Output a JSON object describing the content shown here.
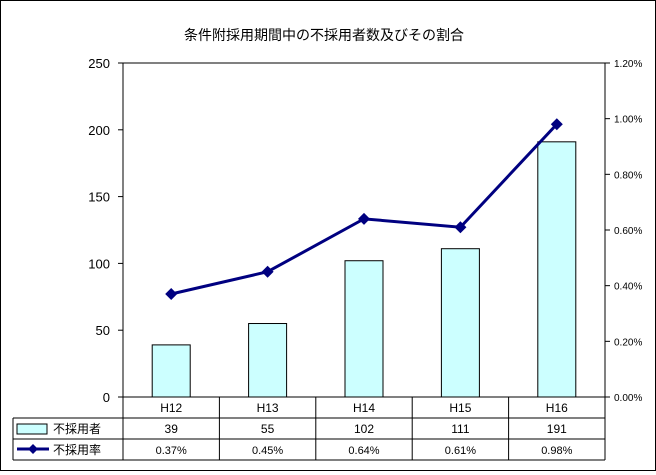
{
  "chart_data": {
    "type": "bar",
    "title": "条件附採用期間中の不採用者数及びその割合",
    "categories": [
      "H12",
      "H13",
      "H14",
      "H15",
      "H16"
    ],
    "y_left": {
      "ylim": [
        0,
        250
      ],
      "ticks": [
        "0",
        "50",
        "100",
        "150",
        "200",
        "250"
      ]
    },
    "y_right": {
      "ylim": [
        0,
        1.2
      ],
      "ticks": [
        "0.00%",
        "0.20%",
        "0.40%",
        "0.60%",
        "0.80%",
        "1.00%",
        "1.20%"
      ]
    },
    "series": [
      {
        "name": "不採用者",
        "kind": "bar",
        "axis": "left",
        "values": [
          39,
          55,
          102,
          111,
          191
        ],
        "labels": [
          "39",
          "55",
          "102",
          "111",
          "191"
        ],
        "color": "#ccffff"
      },
      {
        "name": "不採用率",
        "kind": "line",
        "axis": "right",
        "values": [
          0.37,
          0.45,
          0.64,
          0.61,
          0.98
        ],
        "labels": [
          "0.37%",
          "0.45%",
          "0.64%",
          "0.61%",
          "0.98%"
        ],
        "color": "#000080"
      }
    ],
    "legend": "data-table",
    "grid": false
  }
}
